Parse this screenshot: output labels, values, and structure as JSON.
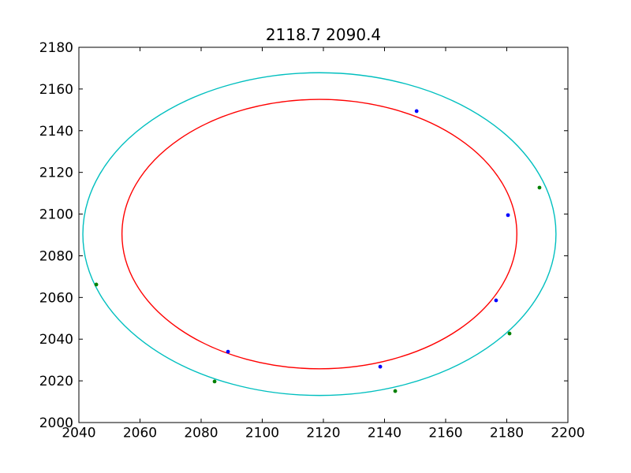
{
  "chart_data": {
    "type": "scatter",
    "title": "2118.7 2090.4",
    "xlabel": "",
    "ylabel": "",
    "xlim": [
      2040,
      2200
    ],
    "ylim": [
      2000,
      2180
    ],
    "xticks": [
      "2040",
      "2060",
      "2080",
      "2100",
      "2120",
      "2140",
      "2160",
      "2180",
      "2200"
    ],
    "yticks": [
      "2000",
      "2020",
      "2040",
      "2060",
      "2080",
      "2100",
      "2120",
      "2140",
      "2160",
      "2180"
    ],
    "grid": false,
    "legend": "none",
    "axis_color": "#000000",
    "background_color": "#ffffff",
    "center": {
      "x": 2118.7,
      "y": 2090.4
    },
    "circles": [
      {
        "name": "outer-circle",
        "color": "#00bfbf",
        "cx": 2118.7,
        "cy": 2090.4,
        "r": 77.4
      },
      {
        "name": "inner-circle",
        "color": "#ff0000",
        "cx": 2118.7,
        "cy": 2090.4,
        "r": 64.6
      }
    ],
    "series": [
      {
        "name": "blue-points",
        "color": "#0000ff",
        "points": [
          [
            2150.5,
            2149.4
          ],
          [
            2180.4,
            2099.5
          ],
          [
            2176.5,
            2058.6
          ],
          [
            2138.6,
            2026.8
          ],
          [
            2088.8,
            2034.0
          ]
        ]
      },
      {
        "name": "green-points",
        "color": "#008000",
        "points": [
          [
            2190.7,
            2112.7
          ],
          [
            2180.9,
            2042.7
          ],
          [
            2143.5,
            2015.1
          ],
          [
            2084.4,
            2019.7
          ],
          [
            2045.7,
            2066.2
          ]
        ]
      }
    ]
  }
}
